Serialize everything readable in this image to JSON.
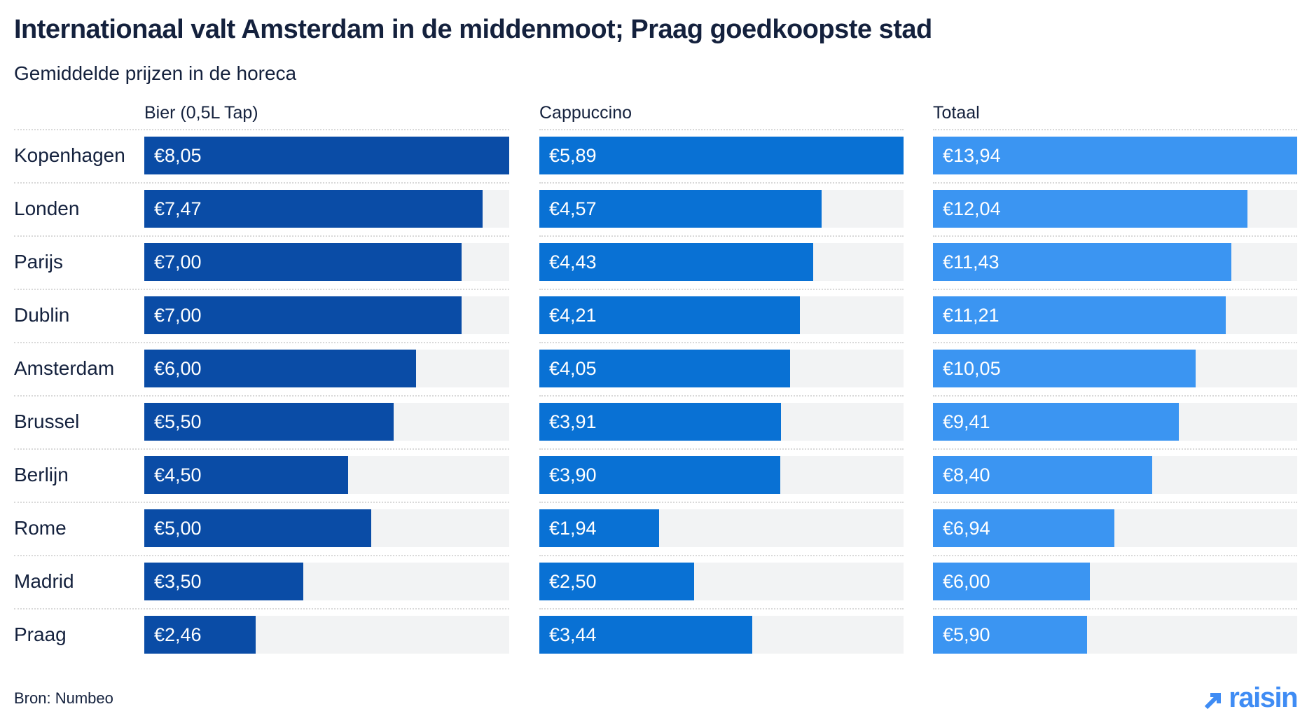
{
  "title": "Internationaal valt Amsterdam in de middenmoot; Praag goedkoopste stad",
  "subtitle": "Gemiddelde prijzen in de horeca",
  "source": "Bron: Numbeo",
  "logo": {
    "text": "raisin",
    "arrow_icon": "arrow-up-right-icon"
  },
  "colors": {
    "title_text": "#14213d",
    "body_text": "#1b2742",
    "bar_beer": "#0a4ca6",
    "bar_cappuccino": "#0971d4",
    "bar_total": "#3b95f2",
    "bar_track": "#f2f3f4",
    "separator": "#d9d9d9",
    "value_text": "#ffffff",
    "logo_blue": "#3f8cf4"
  },
  "chart_data": {
    "type": "bar",
    "orientation": "horizontal",
    "currency": "EUR",
    "note": "each column scaled independently to its own maximum value",
    "categories": [
      "Kopenhagen",
      "Londen",
      "Parijs",
      "Dublin",
      "Amsterdam",
      "Brussel",
      "Berlijn",
      "Rome",
      "Madrid",
      "Praag"
    ],
    "series": [
      {
        "name": "Bier (0,5L Tap)",
        "values": [
          8.05,
          7.47,
          7.0,
          7.0,
          6.0,
          5.5,
          4.5,
          5.0,
          3.5,
          2.46
        ],
        "labels": [
          "€8,05",
          "€7,47",
          "€7,00",
          "€7,00",
          "€6,00",
          "€5,50",
          "€4,50",
          "€5,00",
          "€3,50",
          "€2,46"
        ]
      },
      {
        "name": "Cappuccino",
        "values": [
          5.89,
          4.57,
          4.43,
          4.21,
          4.05,
          3.91,
          3.9,
          1.94,
          2.5,
          3.44
        ],
        "labels": [
          "€5,89",
          "€4,57",
          "€4,43",
          "€4,21",
          "€4,05",
          "€3,91",
          "€3,90",
          "€1,94",
          "€2,50",
          "€3,44"
        ]
      },
      {
        "name": "Totaal",
        "values": [
          13.94,
          12.04,
          11.43,
          11.21,
          10.05,
          9.41,
          8.4,
          6.94,
          6.0,
          5.9
        ],
        "labels": [
          "€13,94",
          "€12,04",
          "€11,43",
          "€11,21",
          "€10,05",
          "€9,41",
          "€8,40",
          "€6,94",
          "€6,00",
          "€5,90"
        ]
      }
    ]
  }
}
